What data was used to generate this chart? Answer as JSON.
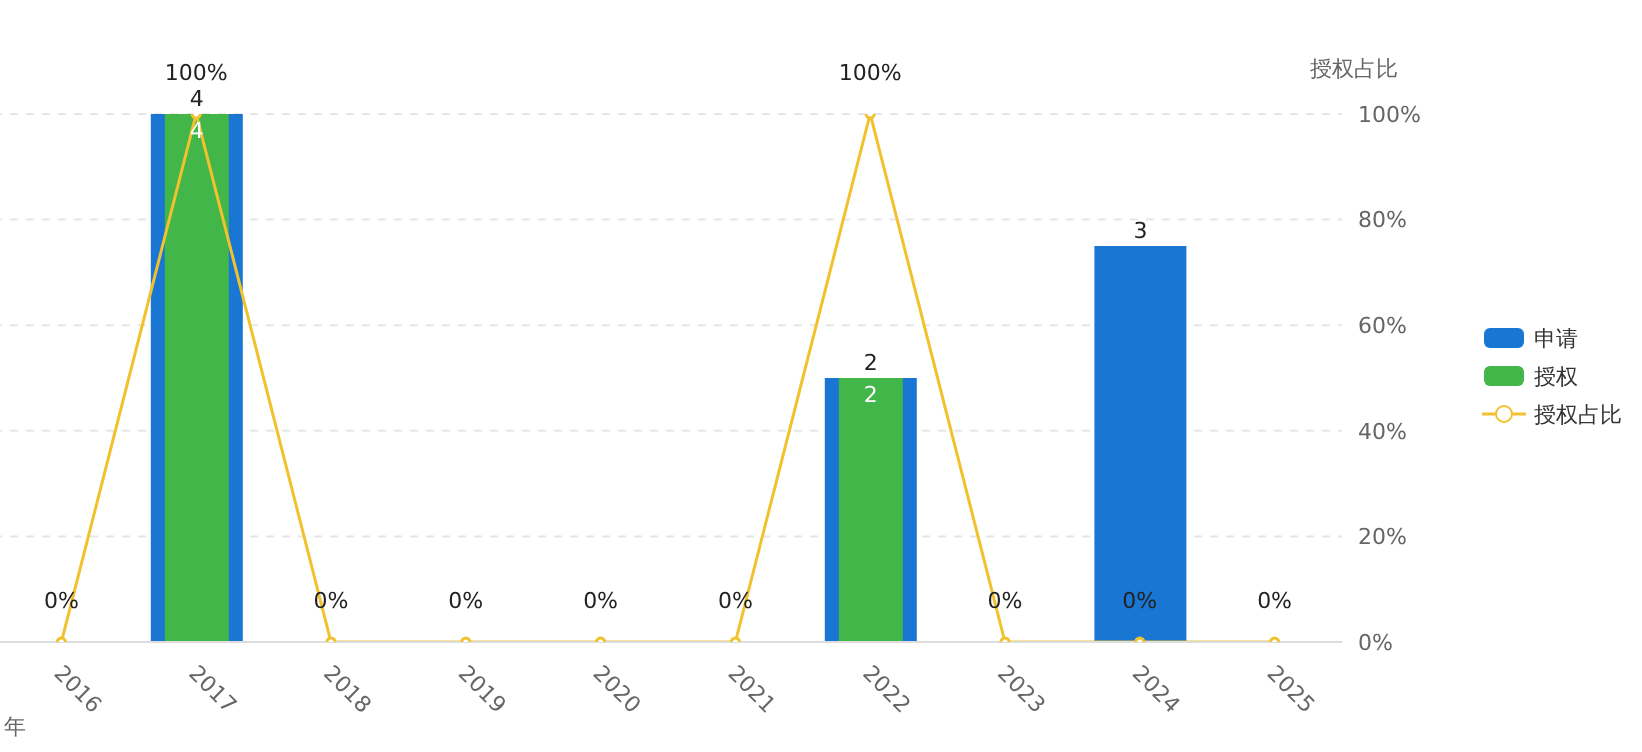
{
  "chart_data": {
    "type": "bar",
    "xlabel": "年",
    "y2label": "授权占比",
    "categories": [
      "2016",
      "2017",
      "2018",
      "2019",
      "2020",
      "2021",
      "2022",
      "2023",
      "2024",
      "2025"
    ],
    "series": [
      {
        "name": "申请",
        "color": "#1976d2",
        "values": [
          null,
          4,
          null,
          null,
          null,
          null,
          2,
          null,
          3,
          null
        ],
        "value_labels": [
          null,
          "4",
          null,
          null,
          null,
          null,
          "2",
          null,
          "3",
          null
        ]
      },
      {
        "name": "授权",
        "color": "#43b649",
        "values": [
          null,
          4,
          null,
          null,
          null,
          null,
          2,
          null,
          null,
          null
        ],
        "value_labels": [
          null,
          "4",
          null,
          null,
          null,
          null,
          "2",
          null,
          null,
          null
        ]
      },
      {
        "name": "授权占比",
        "type": "line",
        "axis": "y2",
        "color": "#f2c12e",
        "values": [
          0,
          100,
          0,
          0,
          0,
          0,
          100,
          0,
          0,
          0
        ],
        "value_labels": [
          "0%",
          "100%",
          "0%",
          "0%",
          "0%",
          "0%",
          "100%",
          "0%",
          "0%",
          "0%"
        ],
        "marker": "circle"
      }
    ],
    "ylim": [
      0,
      4
    ],
    "y2lim": [
      0,
      100
    ],
    "y2ticks": [
      {
        "value": 0,
        "label": "0%"
      },
      {
        "value": 20,
        "label": "20%"
      },
      {
        "value": 40,
        "label": "40%"
      },
      {
        "value": 60,
        "label": "60%"
      },
      {
        "value": 80,
        "label": "80%"
      },
      {
        "value": 100,
        "label": "100%"
      }
    ],
    "grid": "y",
    "legend": "right"
  }
}
